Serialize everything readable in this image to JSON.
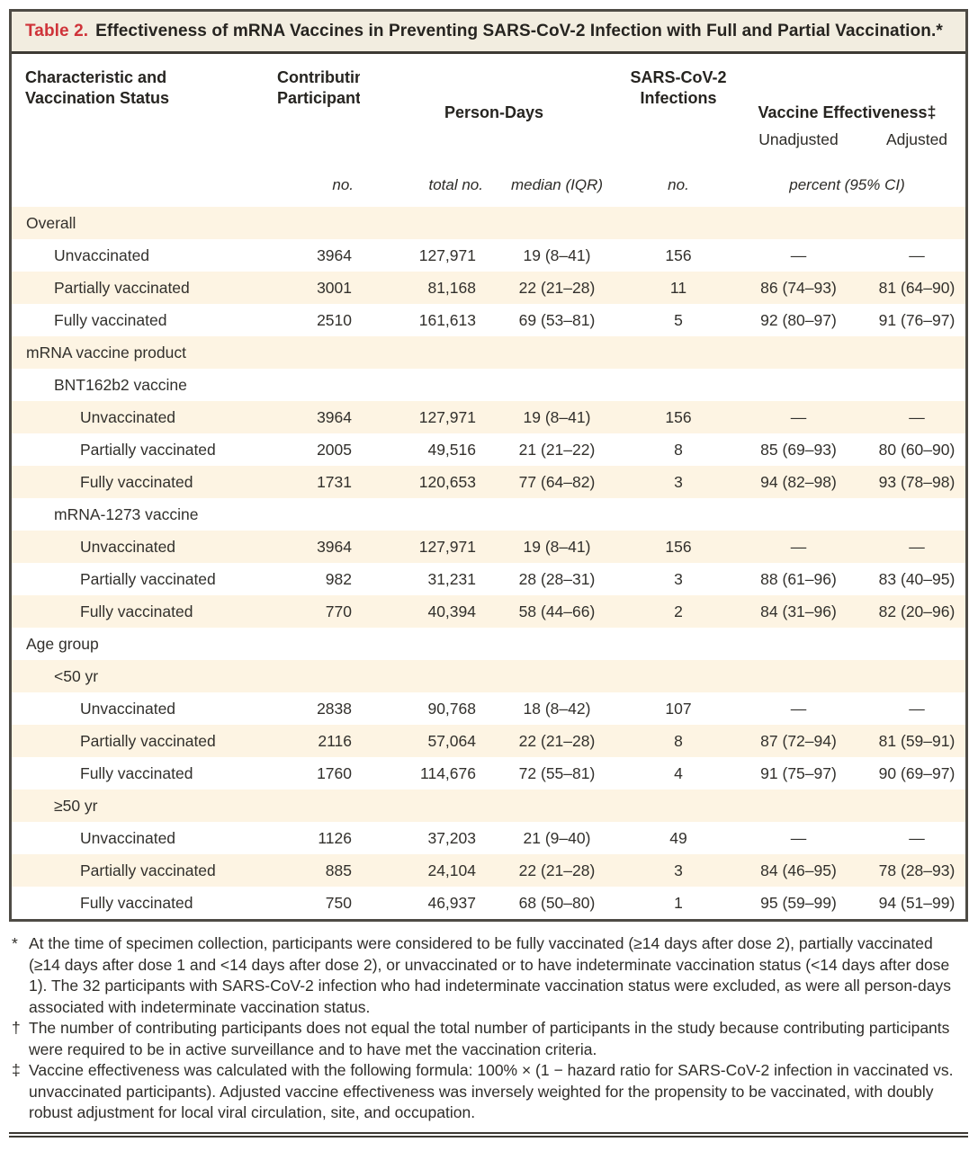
{
  "title": {
    "label": "Table 2.",
    "text": "Effectiveness of mRNA Vaccines in Preventing SARS-CoV-2 Infection with Full and Partial Vaccination.*"
  },
  "header": {
    "characteristic": "Characteristic and\nVaccination Status",
    "participants": "Contributing\nParticipants†",
    "person_days": "Person-Days",
    "infections": "SARS-CoV-2\nInfections",
    "effectiveness": "Vaccine Effectiveness‡",
    "unadjusted": "Unadjusted",
    "adjusted": "Adjusted",
    "units": {
      "participants": "no.",
      "total": "total no.",
      "median": "median (IQR)",
      "infections": "no.",
      "percent": "percent (95% CI)"
    }
  },
  "rows": [
    {
      "label": "Overall",
      "indent": 0,
      "values": [
        "",
        "",
        "",
        "",
        "",
        ""
      ]
    },
    {
      "label": "Unvaccinated",
      "indent": 1,
      "values": [
        "3964",
        "127,971",
        "19 (8–41)",
        "156",
        "—",
        "—"
      ]
    },
    {
      "label": "Partially vaccinated",
      "indent": 1,
      "values": [
        "3001",
        "81,168",
        "22 (21–28)",
        "11",
        "86 (74–93)",
        "81 (64–90)"
      ]
    },
    {
      "label": "Fully vaccinated",
      "indent": 1,
      "values": [
        "2510",
        "161,613",
        "69 (53–81)",
        "5",
        "92 (80–97)",
        "91 (76–97)"
      ]
    },
    {
      "label": "mRNA vaccine product",
      "indent": 0,
      "values": [
        "",
        "",
        "",
        "",
        "",
        ""
      ]
    },
    {
      "label": "BNT162b2 vaccine",
      "indent": 1,
      "values": [
        "",
        "",
        "",
        "",
        "",
        ""
      ]
    },
    {
      "label": "Unvaccinated",
      "indent": 2,
      "values": [
        "3964",
        "127,971",
        "19 (8–41)",
        "156",
        "—",
        "—"
      ]
    },
    {
      "label": "Partially vaccinated",
      "indent": 2,
      "values": [
        "2005",
        "49,516",
        "21 (21–22)",
        "8",
        "85 (69–93)",
        "80 (60–90)"
      ]
    },
    {
      "label": "Fully vaccinated",
      "indent": 2,
      "values": [
        "1731",
        "120,653",
        "77 (64–82)",
        "3",
        "94 (82–98)",
        "93 (78–98)"
      ]
    },
    {
      "label": "mRNA-1273 vaccine",
      "indent": 1,
      "values": [
        "",
        "",
        "",
        "",
        "",
        ""
      ]
    },
    {
      "label": "Unvaccinated",
      "indent": 2,
      "values": [
        "3964",
        "127,971",
        "19 (8–41)",
        "156",
        "—",
        "—"
      ]
    },
    {
      "label": "Partially vaccinated",
      "indent": 2,
      "values": [
        "982",
        "31,231",
        "28 (28–31)",
        "3",
        "88 (61–96)",
        "83 (40–95)"
      ]
    },
    {
      "label": "Fully vaccinated",
      "indent": 2,
      "values": [
        "770",
        "40,394",
        "58 (44–66)",
        "2",
        "84 (31–96)",
        "82 (20–96)"
      ]
    },
    {
      "label": "Age group",
      "indent": 0,
      "values": [
        "",
        "",
        "",
        "",
        "",
        ""
      ]
    },
    {
      "label": "<50 yr",
      "indent": 1,
      "values": [
        "",
        "",
        "",
        "",
        "",
        ""
      ]
    },
    {
      "label": "Unvaccinated",
      "indent": 2,
      "values": [
        "2838",
        "90,768",
        "18 (8–42)",
        "107",
        "—",
        "—"
      ]
    },
    {
      "label": "Partially vaccinated",
      "indent": 2,
      "values": [
        "2116",
        "57,064",
        "22 (21–28)",
        "8",
        "87 (72–94)",
        "81 (59–91)"
      ]
    },
    {
      "label": "Fully vaccinated",
      "indent": 2,
      "values": [
        "1760",
        "114,676",
        "72 (55–81)",
        "4",
        "91 (75–97)",
        "90 (69–97)"
      ]
    },
    {
      "label": "≥50 yr",
      "indent": 1,
      "values": [
        "",
        "",
        "",
        "",
        "",
        ""
      ]
    },
    {
      "label": "Unvaccinated",
      "indent": 2,
      "values": [
        "1126",
        "37,203",
        "21 (9–40)",
        "49",
        "—",
        "—"
      ]
    },
    {
      "label": "Partially vaccinated",
      "indent": 2,
      "values": [
        "885",
        "24,104",
        "22 (21–28)",
        "3",
        "84 (46–95)",
        "78 (28–93)"
      ]
    },
    {
      "label": "Fully vaccinated",
      "indent": 2,
      "values": [
        "750",
        "46,937",
        "68 (50–80)",
        "1",
        "95 (59–99)",
        "94 (51–99)"
      ]
    }
  ],
  "footnotes": [
    {
      "marker": "*",
      "text": "At the time of specimen collection, participants were considered to be fully vaccinated (≥14 days after dose 2), partially vaccinated (≥14 days after dose 1 and <14 days after dose 2), or unvaccinated or to have indeterminate vaccination status (<14 days after dose 1). The 32 participants with SARS-CoV-2 infection who had indeterminate vaccination status were excluded, as were all person-days associated with indeterminate vaccination status."
    },
    {
      "marker": "†",
      "text": "The number of contributing participants does not equal the total number of participants in the study because contributing participants were required to be in active surveillance and to have met the vaccination criteria."
    },
    {
      "marker": "‡",
      "text": "Vaccine effectiveness was calculated with the following formula: 100% × (1 − hazard ratio for SARS-CoV-2 infection in vaccinated vs. unvaccinated participants). Adjusted vaccine effectiveness was inversely weighted for the propensity to be vaccinated, with doubly robust adjustment for local viral circulation, site, and occupation."
    }
  ],
  "colors": {
    "title_red": "#cf3339",
    "title_bar_bg": "#f2ede0",
    "row_stripe_bg": "#fdf4e3",
    "border_dark": "#4e4b45",
    "text": "#2d2b27"
  }
}
